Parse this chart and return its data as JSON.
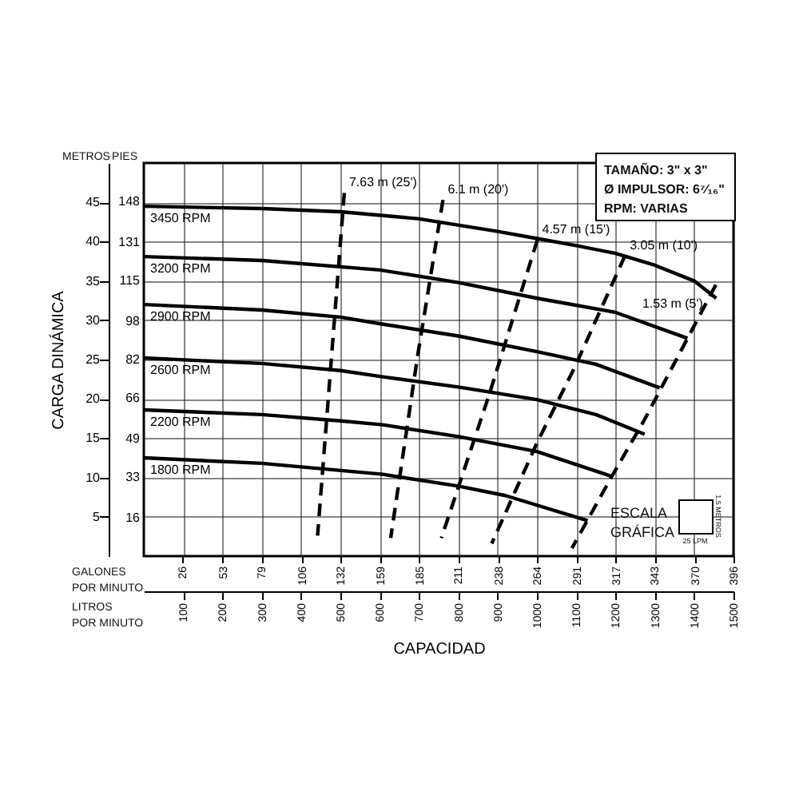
{
  "chart_data": {
    "type": "line",
    "xlabel": "CAPACIDAD",
    "ylabel": "CARGA DINÁMICA",
    "xlim": [
      0,
      1500
    ],
    "xticks": [
      100,
      200,
      300,
      400,
      500,
      600,
      700,
      800,
      900,
      1000,
      1100,
      1200,
      1300,
      1400,
      1500
    ],
    "x2lim": [
      0,
      396
    ],
    "x2ticks": [
      26,
      53,
      79,
      106,
      132,
      159,
      185,
      211,
      238,
      264,
      291,
      317,
      343,
      370,
      396
    ],
    "ylim": [
      0,
      50
    ],
    "yticks": [
      5,
      10,
      15,
      20,
      25,
      30,
      35,
      40,
      45
    ],
    "y2lim": [
      0,
      164
    ],
    "y2ticks": [
      16,
      33,
      49,
      66,
      82,
      98,
      115,
      131,
      148
    ],
    "grid": true,
    "series": [
      {
        "name": "3450 RPM",
        "color": "#000000",
        "line_style": "solid",
        "x": [
          0,
          300,
          500,
          700,
          900,
          1000,
          1100,
          1200,
          1300,
          1400,
          1456
        ],
        "values": [
          44.5,
          44.2,
          43.8,
          42.9,
          41.3,
          40.4,
          39.5,
          38.5,
          37,
          35,
          32.8
        ]
      },
      {
        "name": "3200 RPM",
        "color": "#000000",
        "line_style": "solid",
        "x": [
          0,
          300,
          600,
          800,
          1000,
          1200,
          1383
        ],
        "values": [
          38.1,
          37.6,
          36.4,
          34.8,
          32.8,
          31,
          27.7
        ]
      },
      {
        "name": "2900 RPM",
        "color": "#000000",
        "line_style": "solid",
        "x": [
          0,
          300,
          500,
          608,
          800,
          1000,
          1150,
          1312
        ],
        "values": [
          32,
          31.3,
          30.4,
          29.5,
          28,
          26,
          24.4,
          21.4
        ]
      },
      {
        "name": "2600 RPM",
        "color": "#000000",
        "line_style": "solid",
        "x": [
          0,
          300,
          500,
          608,
          800,
          1000,
          1150,
          1274
        ],
        "values": [
          25.2,
          24.5,
          23.6,
          22.8,
          21.5,
          19.9,
          18,
          15.5
        ]
      },
      {
        "name": "2200 RPM",
        "color": "#000000",
        "line_style": "solid",
        "x": [
          0,
          300,
          500,
          608,
          800,
          1000,
          1193
        ],
        "values": [
          18.6,
          18,
          17.2,
          16.7,
          15.2,
          13.3,
          10.1
        ]
      },
      {
        "name": "1800 RPM",
        "color": "#000000",
        "line_style": "solid",
        "x": [
          0,
          300,
          608,
          800,
          920,
          1129
        ],
        "values": [
          12.5,
          11.8,
          10.4,
          8.9,
          7.7,
          4.5
        ]
      },
      {
        "name": "7.63 m (25')",
        "color": "#000000",
        "line_style": "dashed",
        "x": [
          510,
          442
        ],
        "values": [
          46.2,
          2.6
        ]
      },
      {
        "name": "6.1 m (20')",
        "color": "#000000",
        "line_style": "dashed",
        "x": [
          761,
          696,
          628
        ],
        "values": [
          45.3,
          25.3,
          2.3
        ]
      },
      {
        "name": "4.57 m (15')",
        "color": "#000000",
        "line_style": "dashed",
        "x": [
          1001,
          879,
          757
        ],
        "values": [
          40.2,
          20.6,
          2.3
        ]
      },
      {
        "name": "3.05 m (10')",
        "color": "#000000",
        "line_style": "dashed",
        "x": [
          1224,
          1096,
          1001,
          885
        ],
        "values": [
          38.2,
          24,
          14.5,
          1.6
        ]
      },
      {
        "name": "1.53 m (5')",
        "color": "#000000",
        "line_style": "dashed",
        "x": [
          1455,
          1380,
          1272,
          1190,
          1089
        ],
        "values": [
          34.5,
          27.4,
          17.2,
          10.1,
          1
        ]
      }
    ],
    "annotations": [
      "METROS",
      "PIES",
      "GALONES POR MINUTO",
      "LITROS POR MINUTO",
      "TAMAÑO: 3\" x 3\"",
      "Ø IMPULSOR: 6⁷⁄₁₆\"",
      "RPM: VARIAS",
      "ESCALA GRÁFICA",
      "25 LPM",
      "1.5 METROS"
    ]
  }
}
